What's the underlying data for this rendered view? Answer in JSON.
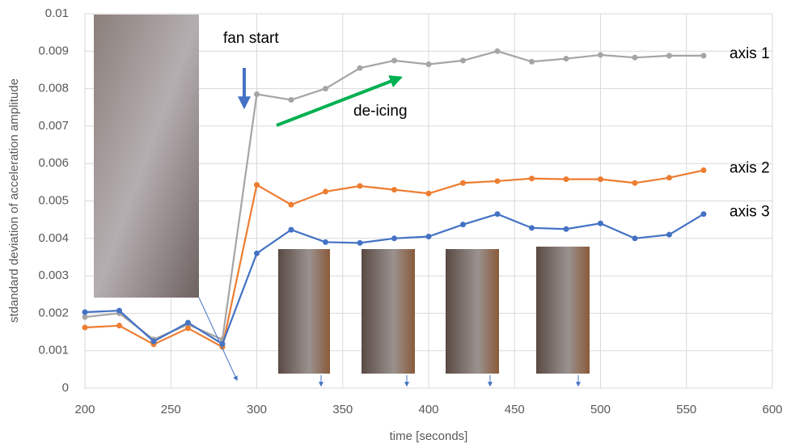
{
  "chart_data": {
    "type": "line",
    "x": [
      200,
      220,
      240,
      260,
      280,
      300,
      320,
      340,
      360,
      380,
      400,
      420,
      440,
      460,
      480,
      500,
      520,
      540,
      560
    ],
    "series": [
      {
        "name": "axis 1",
        "color": "#a5a5a5",
        "values": [
          0.0019,
          0.002,
          0.0013,
          0.0017,
          0.0013,
          0.00785,
          0.0077,
          0.008,
          0.00855,
          0.00875,
          0.00865,
          0.00875,
          0.009,
          0.00872,
          0.0088,
          0.0089,
          0.00883,
          0.00888,
          0.00888
        ]
      },
      {
        "name": "axis 2",
        "color": "#ed7d31",
        "values": [
          0.00162,
          0.00167,
          0.00117,
          0.0016,
          0.0011,
          0.00543,
          0.0049,
          0.00525,
          0.0054,
          0.0053,
          0.0052,
          0.00548,
          0.00553,
          0.0056,
          0.00558,
          0.00558,
          0.00548,
          0.00562,
          0.00582
        ]
      },
      {
        "name": "axis 3",
        "color": "#4472c4",
        "values": [
          0.00203,
          0.00207,
          0.00125,
          0.00175,
          0.00118,
          0.0036,
          0.00423,
          0.0039,
          0.00388,
          0.004,
          0.00405,
          0.00437,
          0.00465,
          0.00428,
          0.00425,
          0.0044,
          0.004,
          0.0041,
          0.00465
        ]
      }
    ],
    "xlim": [
      200,
      600
    ],
    "xticks": [
      200,
      250,
      300,
      350,
      400,
      450,
      500,
      550,
      600
    ],
    "ylim": [
      0,
      0.01
    ],
    "yticks": [
      0,
      0.001,
      0.002,
      0.003,
      0.004,
      0.005,
      0.006,
      0.007,
      0.008,
      0.009,
      0.01
    ],
    "grid": true,
    "x_label": "time [seconds]",
    "y_label": "stdandard deviation of acceleration amplitude",
    "annotations": [
      "fan start",
      "de-icing"
    ]
  }
}
